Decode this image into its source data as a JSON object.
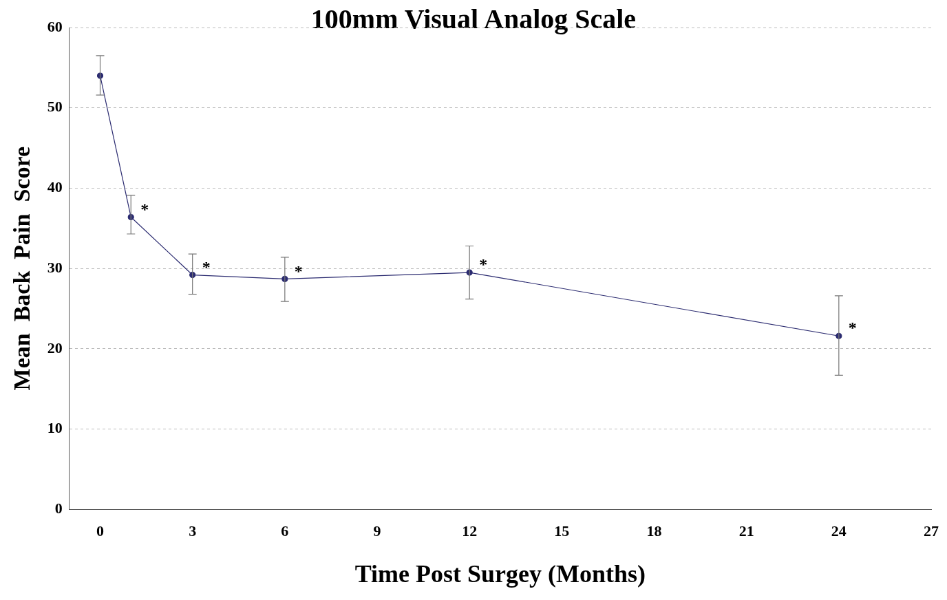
{
  "chart_data": {
    "type": "line",
    "title": "100mm Visual Analog Scale",
    "xlabel": "Time Post Surgey (Months)",
    "ylabel": "Mean  Back  Pain  Score",
    "series": [
      {
        "color": "#2b2b70",
        "x": [
          0,
          1,
          3,
          6,
          12,
          24
        ],
        "values": [
          54,
          36.4,
          29.2,
          28.7,
          29.5,
          21.6
        ],
        "errors": [
          [
            51.6,
            56.5
          ],
          [
            34.3,
            39.1
          ],
          [
            26.8,
            31.8
          ],
          [
            25.9,
            31.4
          ],
          [
            26.2,
            32.8
          ],
          [
            16.7,
            26.6
          ]
        ]
      }
    ],
    "annotations": [
      {
        "text": "*",
        "x": 1,
        "y": 36.4
      },
      {
        "text": "*",
        "x": 3,
        "y": 29.2
      },
      {
        "text": "*",
        "x": 6,
        "y": 28.7
      },
      {
        "text": "*",
        "x": 12,
        "y": 29.5
      },
      {
        "text": "*",
        "x": 24,
        "y": 21.6
      }
    ],
    "xlim": [
      -1,
      27
    ],
    "xticks": [
      0,
      3,
      6,
      9,
      12,
      15,
      18,
      21,
      24,
      27
    ],
    "ylim": [
      0,
      60
    ],
    "yticks": [
      0,
      10,
      20,
      30,
      40,
      50,
      60
    ],
    "grid": "y",
    "marker": "circle",
    "line_style": "solid",
    "legend": false
  }
}
